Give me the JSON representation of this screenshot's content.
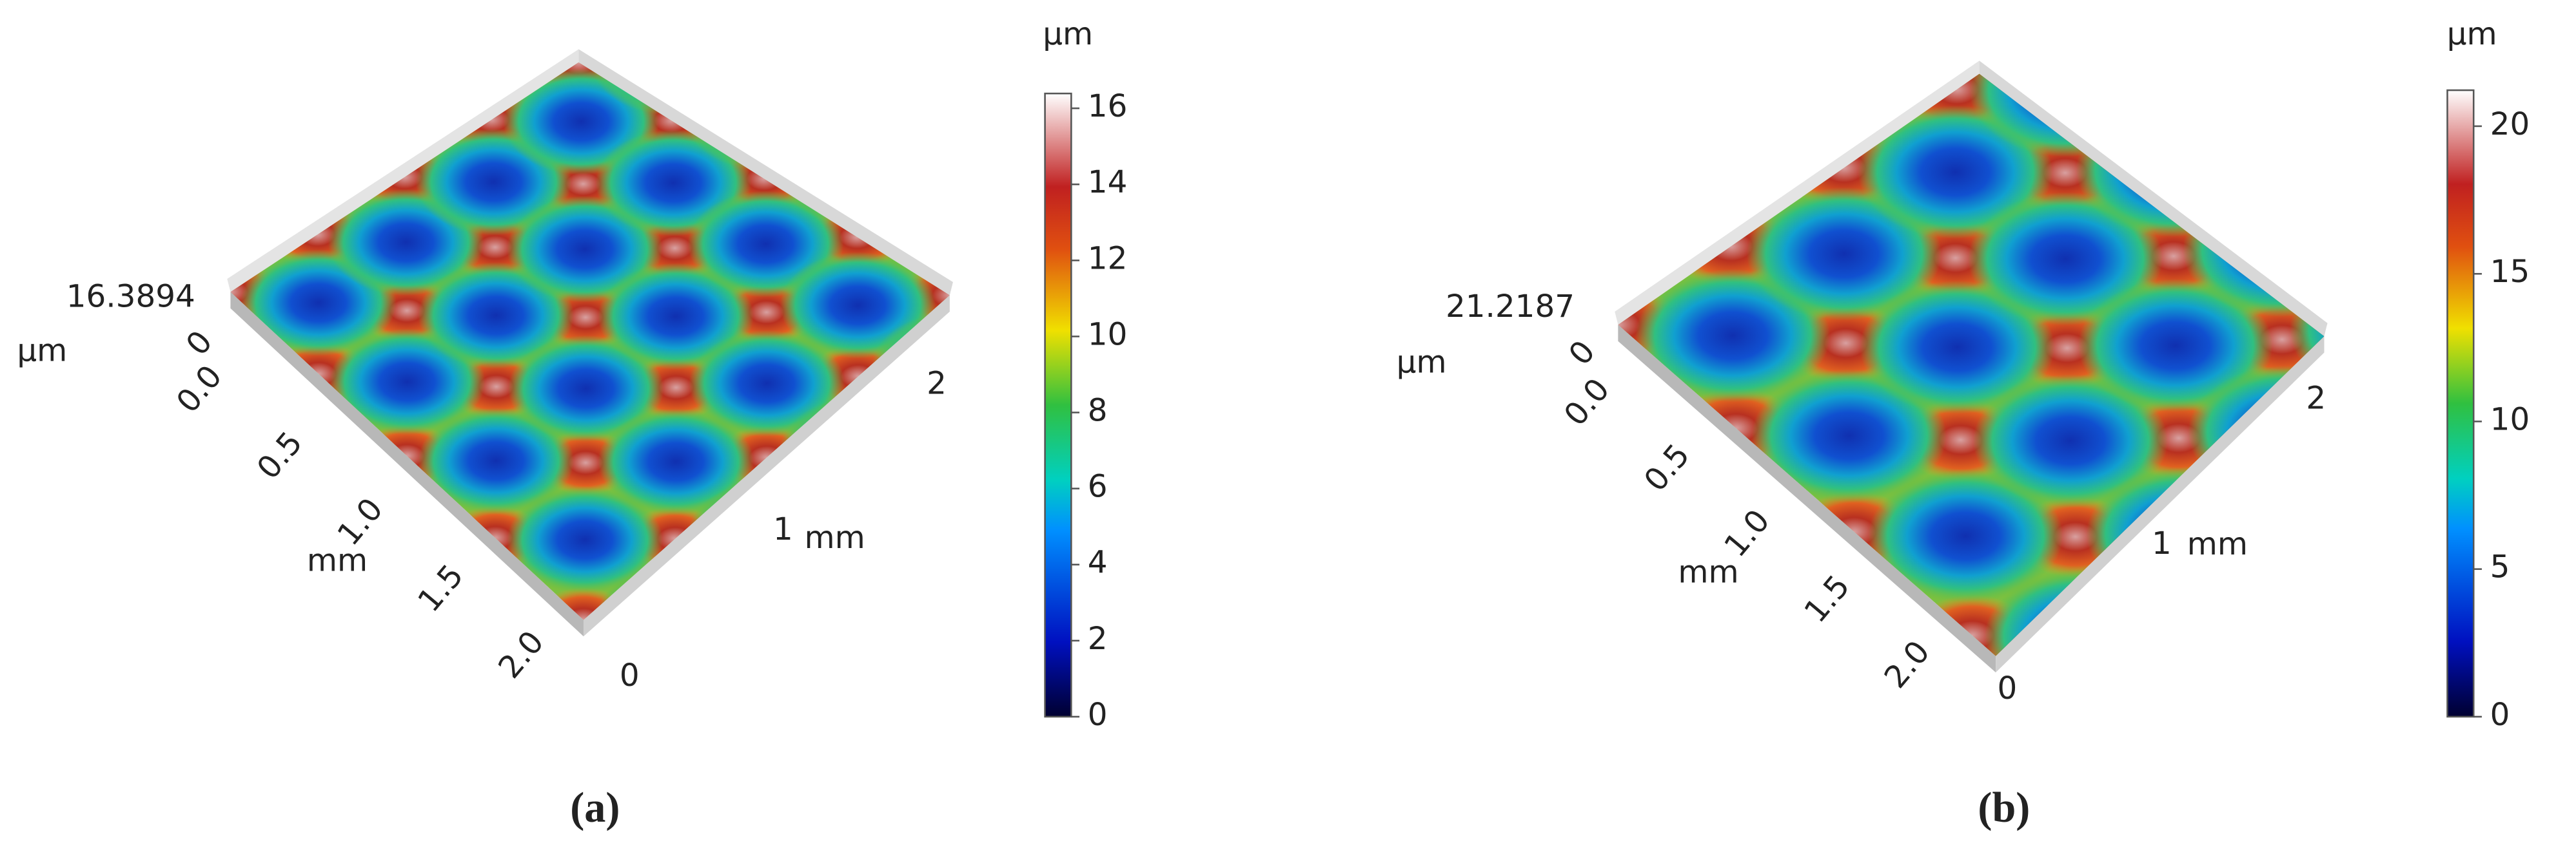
{
  "chart_data": [
    {
      "type": "surface",
      "label": "(a)",
      "colorbar": {
        "title": "µm",
        "lim": [
          0,
          16.3894
        ],
        "ticks": [
          0,
          2,
          4,
          6,
          8,
          10,
          12,
          14,
          16
        ]
      },
      "z_axis": {
        "label": "µm",
        "ticks": [
          0,
          {
            "value": 16.3894,
            "label": "16.3894"
          }
        ]
      },
      "x_axis": {
        "label": "mm",
        "ticks": [
          {
            "value": 0,
            "label": "0.0"
          },
          0.5,
          {
            "value": 1,
            "label": "1.0"
          },
          1.5,
          {
            "value": 2,
            "label": "2.0"
          }
        ]
      },
      "y_axis": {
        "label": "mm",
        "ticks": [
          0,
          1,
          2
        ]
      }
    },
    {
      "type": "surface",
      "label": "(b)",
      "colorbar": {
        "title": "µm",
        "lim": [
          0,
          21.2187
        ],
        "ticks": [
          0,
          5,
          10,
          15,
          20
        ]
      },
      "z_axis": {
        "label": "µm",
        "ticks": [
          0,
          {
            "value": 21.2187,
            "label": "21.2187"
          }
        ]
      },
      "x_axis": {
        "label": "mm",
        "ticks": [
          {
            "value": 0,
            "label": "0.0"
          },
          0.5,
          {
            "value": 1,
            "label": "1.0"
          },
          1.5,
          {
            "value": 2,
            "label": "2.0"
          }
        ]
      },
      "y_axis": {
        "label": "mm",
        "ticks": [
          0,
          1,
          2
        ]
      }
    }
  ]
}
